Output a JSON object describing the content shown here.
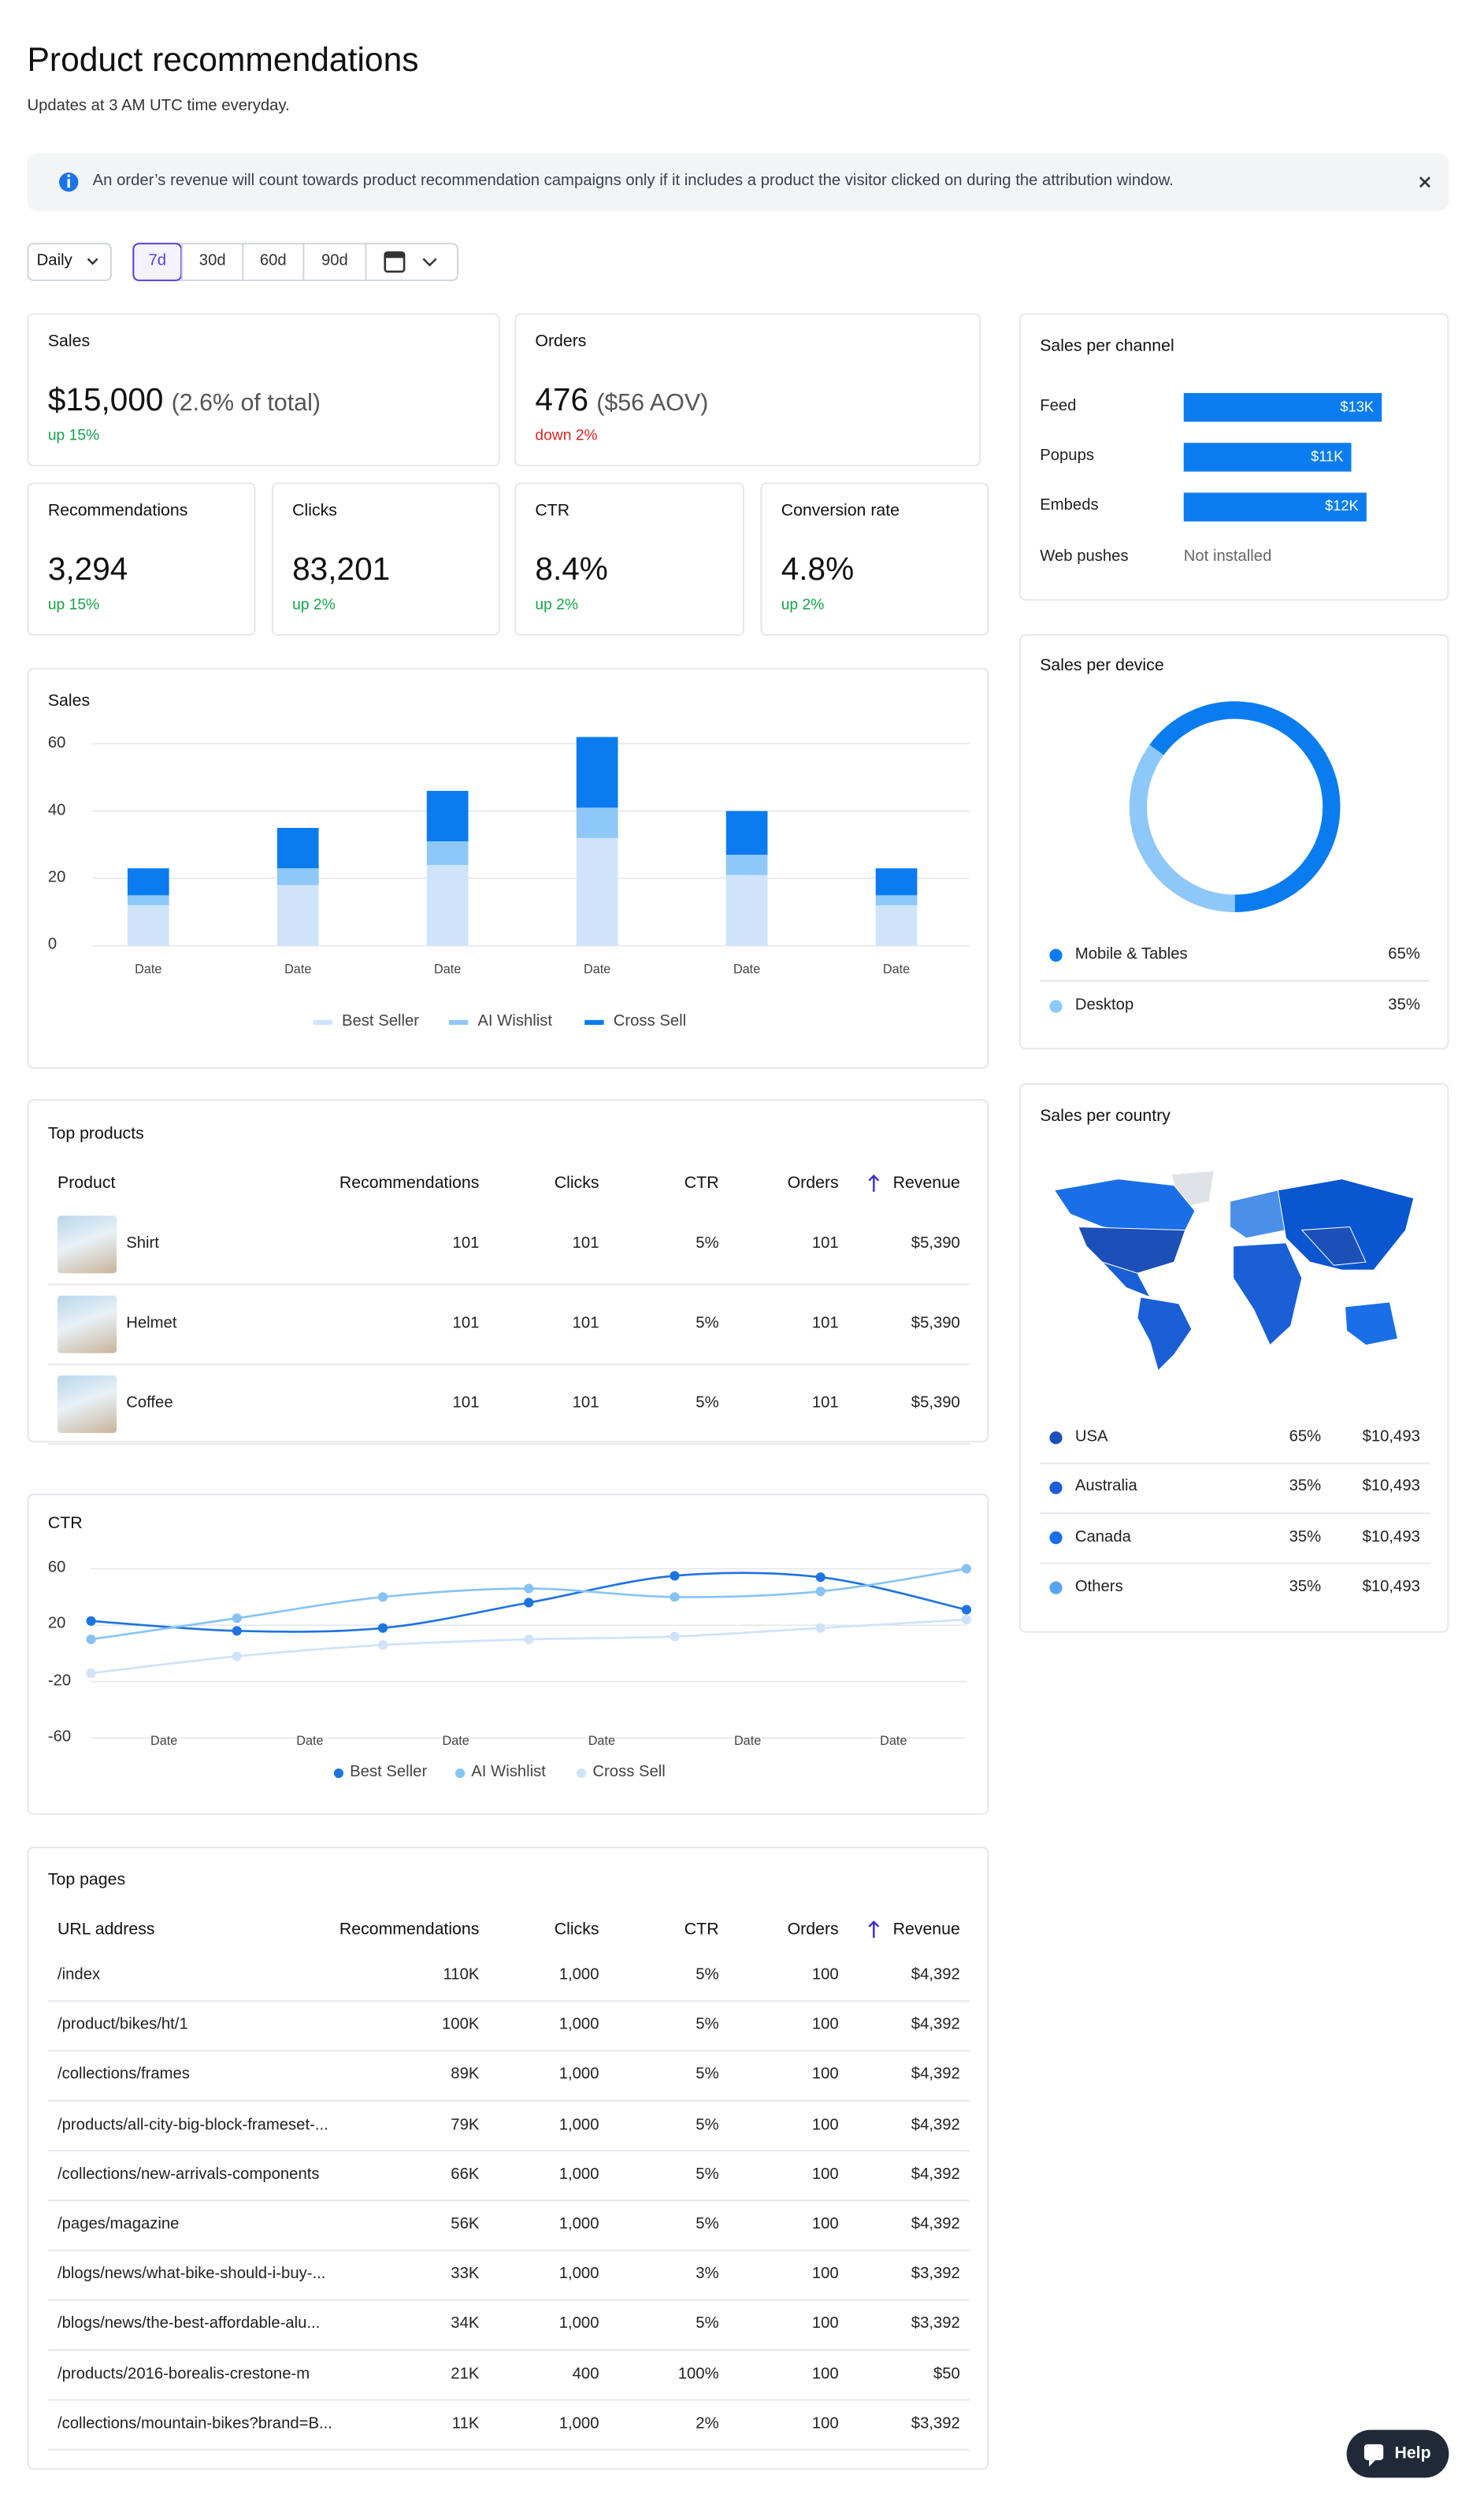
{
  "header": {
    "title": "Product recommendations",
    "subtitle": "Updates at 3 AM UTC time everyday."
  },
  "banner": {
    "text": "An order’s revenue will count towards product recommendation campaigns only if it includes a product the visitor clicked on during the attribution window."
  },
  "controls": {
    "interval": "Daily",
    "ranges": [
      "7d",
      "30d",
      "60d",
      "90d"
    ],
    "selected": "7d"
  },
  "kpis": [
    {
      "label": "Sales",
      "value": "$15,000",
      "detail": "(2.6% of total)",
      "change": "up 15%",
      "trend": "up"
    },
    {
      "label": "Orders",
      "value": "476",
      "detail": "($56 AOV)",
      "change": "down 2%",
      "trend": "down"
    },
    {
      "label": "Recommendations",
      "value": "3,294",
      "change": "up 15%",
      "trend": "up"
    },
    {
      "label": "Clicks",
      "value": "83,201",
      "change": "up 2%",
      "trend": "up"
    },
    {
      "label": "CTR",
      "value": "8.4%",
      "change": "up 2%",
      "trend": "up"
    },
    {
      "label": "Conversion rate",
      "value": "4.8%",
      "change": "up 2%",
      "trend": "up"
    }
  ],
  "chart_data": [
    {
      "type": "bar",
      "stacked": true,
      "title": "Sales",
      "categories": [
        "Date",
        "Date",
        "Date",
        "Date",
        "Date",
        "Date"
      ],
      "series": [
        {
          "name": "Best Seller",
          "color": "#cfe4fb",
          "values": [
            12,
            18,
            24,
            32,
            21,
            12
          ]
        },
        {
          "name": "AI Wishlist",
          "color": "#8ec8f8",
          "values": [
            3,
            5,
            7,
            9,
            6,
            3
          ]
        },
        {
          "name": "Cross Sell",
          "color": "#0a7cf0",
          "values": [
            8,
            12,
            15,
            21,
            13,
            8
          ]
        }
      ],
      "ylim": [
        0,
        65
      ],
      "yticks": [
        0,
        20,
        40,
        60
      ],
      "grid": true,
      "legend": "bottom"
    },
    {
      "type": "line",
      "title": "CTR",
      "categories": [
        "Date",
        "Date",
        "Date",
        "Date",
        "Date",
        "Date",
        null
      ],
      "series": [
        {
          "name": "Best Seller",
          "color": "#1e73e0",
          "values": [
            23,
            16,
            18,
            36,
            55,
            54,
            31
          ]
        },
        {
          "name": "AI Wishlist",
          "color": "#86c3f5",
          "values": [
            10,
            25,
            40,
            46,
            40,
            44,
            60
          ]
        },
        {
          "name": "Cross Sell",
          "color": "#cfe2f8",
          "values": [
            -14,
            -2,
            6,
            10,
            12,
            18,
            24
          ]
        }
      ],
      "ylim": [
        -60,
        60
      ],
      "yticks": [
        60,
        20,
        -20,
        -60
      ],
      "grid": true,
      "legend": "bottom"
    },
    {
      "type": "hbar",
      "title": "Sales per channel",
      "categories": [
        "Feed",
        "Popups",
        "Embeds",
        "Web pushes"
      ],
      "values": [
        13000,
        11000,
        12000,
        null
      ],
      "value_labels": [
        "$13K",
        "$11K",
        "$12K",
        null
      ],
      "annotations": [
        null,
        null,
        null,
        "Not installed"
      ],
      "color": "#0a7cf0"
    },
    {
      "type": "pie",
      "donut": true,
      "title": "Sales per device",
      "categories": [
        "Mobile & Tables",
        "Desktop"
      ],
      "values": [
        65,
        35
      ],
      "value_labels": [
        "65%",
        "35%"
      ],
      "colors": [
        "#0a7cf0",
        "#8ec8f8"
      ]
    }
  ],
  "sales_per_country": {
    "title": "Sales per country",
    "rows": [
      {
        "name": "USA",
        "share": "65%",
        "revenue": "$10,493",
        "color": "#1c4fb8"
      },
      {
        "name": "Australia",
        "share": "35%",
        "revenue": "$10,493",
        "color": "#1a5fd6"
      },
      {
        "name": "Canada",
        "share": "35%",
        "revenue": "$10,493",
        "color": "#1a6fe8"
      },
      {
        "name": "Others",
        "share": "35%",
        "revenue": "$10,493",
        "color": "#5aa3f0"
      }
    ]
  },
  "top_products": {
    "title": "Top products",
    "sorted_by": "Revenue",
    "columns": [
      "Product",
      "Recommendations",
      "Clicks",
      "CTR",
      "Orders",
      "Revenue"
    ],
    "rows": [
      [
        "Shirt",
        "101",
        "101",
        "5%",
        "101",
        "$5,390"
      ],
      [
        "Helmet",
        "101",
        "101",
        "5%",
        "101",
        "$5,390"
      ],
      [
        "Coffee",
        "101",
        "101",
        "5%",
        "101",
        "$5,390"
      ]
    ]
  },
  "top_pages": {
    "title": "Top pages",
    "sorted_by": "Revenue",
    "columns": [
      "URL address",
      "Recommendations",
      "Clicks",
      "CTR",
      "Orders",
      "Revenue"
    ],
    "rows": [
      [
        "/index",
        "110K",
        "1,000",
        "5%",
        "100",
        "$4,392"
      ],
      [
        "/product/bikes/ht/1",
        "100K",
        "1,000",
        "5%",
        "100",
        "$4,392"
      ],
      [
        "/collections/frames",
        "89K",
        "1,000",
        "5%",
        "100",
        "$4,392"
      ],
      [
        "/products/all-city-big-block-frameset-...",
        "79K",
        "1,000",
        "5%",
        "100",
        "$4,392"
      ],
      [
        "/collections/new-arrivals-components",
        "66K",
        "1,000",
        "5%",
        "100",
        "$4,392"
      ],
      [
        "/pages/magazine",
        "56K",
        "1,000",
        "5%",
        "100",
        "$4,392"
      ],
      [
        "/blogs/news/what-bike-should-i-buy-...",
        "33K",
        "1,000",
        "3%",
        "100",
        "$3,392"
      ],
      [
        "/blogs/news/the-best-affordable-alu...",
        "34K",
        "1,000",
        "5%",
        "100",
        "$3,392"
      ],
      [
        "/products/2016-borealis-crestone-m",
        "21K",
        "400",
        "100%",
        "100",
        "$50"
      ],
      [
        "/collections/mountain-bikes?brand=B...",
        "11K",
        "1,000",
        "2%",
        "100",
        "$3,392"
      ]
    ]
  },
  "help": {
    "label": "Help"
  }
}
